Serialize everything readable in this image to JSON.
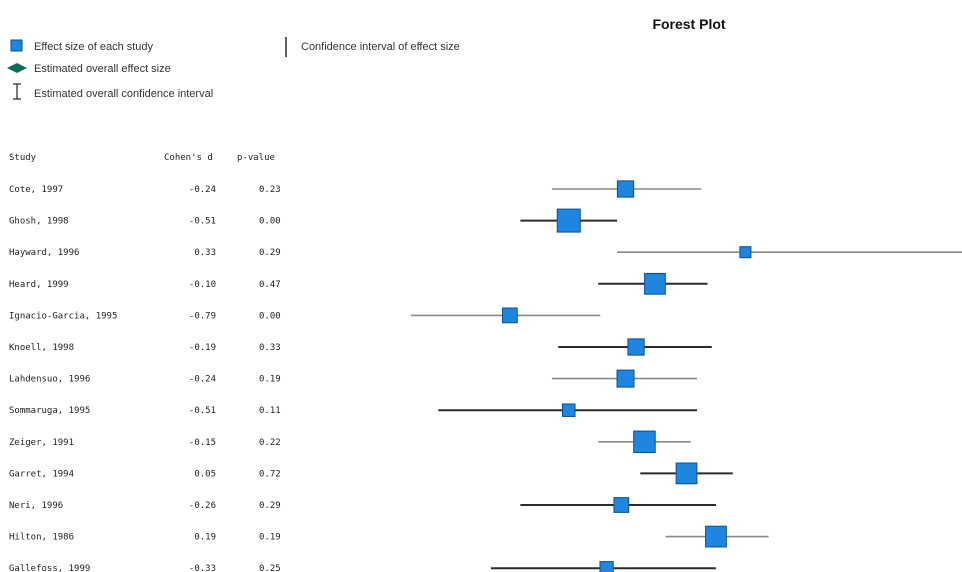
{
  "colors": {
    "square": "#1f86e0",
    "square_stroke": "#0b4f8f",
    "diamond": "#0d6b5c",
    "ci_line_dark": "#2b2b2b",
    "ci_line_light": "#8a8a8a"
  },
  "legend": {
    "effect_size": "Effect size of each study",
    "ci": "Confidence interval of effect size",
    "overall_effect": "Estimated overall effect size",
    "overall_ci": "Estimated overall confidence interval"
  },
  "chart_data": {
    "type": "forest",
    "title": "Forest Plot",
    "columns": {
      "study": "Study",
      "d": "Cohen's d",
      "p": "p-value"
    },
    "xlim": [
      -1.36,
      1.36
    ],
    "studies": [
      {
        "study": "Cote, 1997",
        "d_text": "-0.24",
        "p_text": "0.23",
        "d": -0.24,
        "lower": -0.59,
        "upper": 0.12,
        "weight": 0.55,
        "dark": false
      },
      {
        "study": "Ghosh, 1998",
        "d_text": "-0.51",
        "p_text": "0.00",
        "d": -0.51,
        "lower": -0.74,
        "upper": -0.28,
        "weight": 1.0,
        "dark": true
      },
      {
        "study": "Hayward, 1996",
        "d_text": "0.33",
        "p_text": "0.29",
        "d": 0.33,
        "lower": -0.28,
        "upper": 1.36,
        "weight": 0.2,
        "dark": false
      },
      {
        "study": "Heard, 1999",
        "d_text": "-0.10",
        "p_text": "0.47",
        "d": -0.1,
        "lower": -0.37,
        "upper": 0.15,
        "weight": 0.85,
        "dark": true
      },
      {
        "study": "Ignacio-Garcia, 1995",
        "d_text": "-0.79",
        "p_text": "0.00",
        "d": -0.79,
        "lower": -1.26,
        "upper": -0.36,
        "weight": 0.45,
        "dark": false
      },
      {
        "study": "Knoell, 1998",
        "d_text": "-0.19",
        "p_text": "0.33",
        "d": -0.19,
        "lower": -0.56,
        "upper": 0.17,
        "weight": 0.55,
        "dark": true
      },
      {
        "study": "Lahdensuo, 1996",
        "d_text": "-0.24",
        "p_text": "0.19",
        "d": -0.24,
        "lower": -0.59,
        "upper": 0.1,
        "weight": 0.6,
        "dark": false
      },
      {
        "study": "Sommaruga, 1995",
        "d_text": "-0.51",
        "p_text": "0.11",
        "d": -0.51,
        "lower": -1.13,
        "upper": 0.1,
        "weight": 0.3,
        "dark": true
      },
      {
        "study": "Zeiger, 1991",
        "d_text": "-0.15",
        "p_text": "0.22",
        "d": -0.15,
        "lower": -0.37,
        "upper": 0.07,
        "weight": 0.9,
        "dark": false
      },
      {
        "study": "Garret, 1994",
        "d_text": "0.05",
        "p_text": "0.72",
        "d": 0.05,
        "lower": -0.17,
        "upper": 0.27,
        "weight": 0.85,
        "dark": true
      },
      {
        "study": "Neri, 1996",
        "d_text": "-0.26",
        "p_text": "0.29",
        "d": -0.26,
        "lower": -0.74,
        "upper": 0.19,
        "weight": 0.45,
        "dark": true
      },
      {
        "study": "Hilton, 1986",
        "d_text": "0.19",
        "p_text": "0.19",
        "d": 0.19,
        "lower": -0.05,
        "upper": 0.44,
        "weight": 0.85,
        "dark": false
      },
      {
        "study": "Gallefoss, 1999",
        "d_text": "-0.33",
        "p_text": "0.25",
        "d": -0.33,
        "lower": -0.88,
        "upper": 0.19,
        "weight": 0.35,
        "dark": true
      }
    ]
  }
}
